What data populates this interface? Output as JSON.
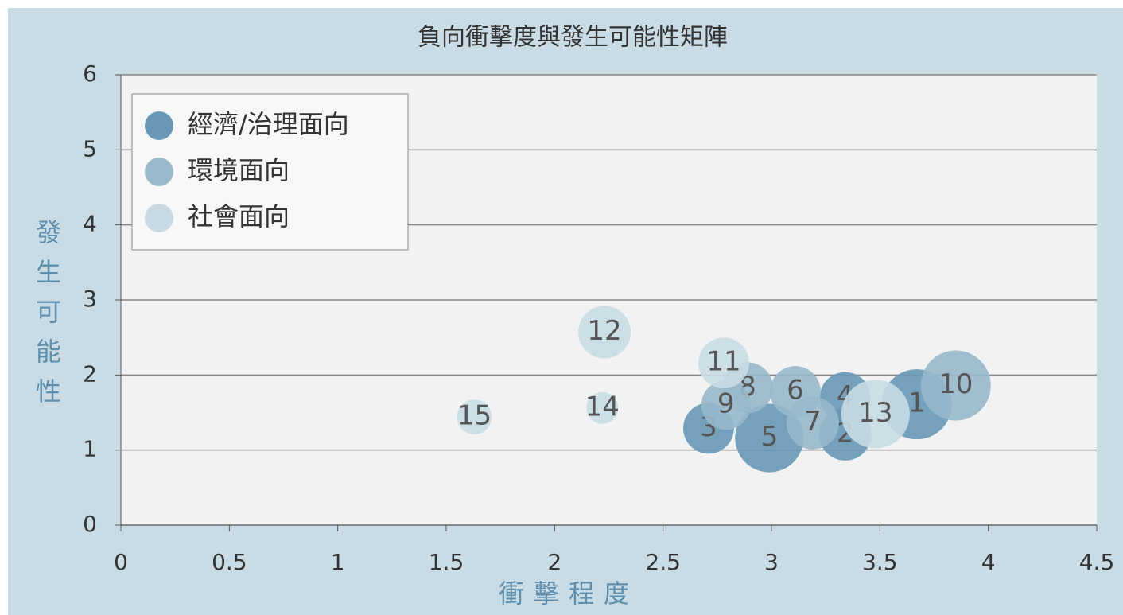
{
  "chart_data": {
    "type": "bubble",
    "title": "負向衝擊度與發生可能性矩陣",
    "x_label": "衝擊程度",
    "y_label": "發生可能性",
    "xlim": [
      0,
      4.5
    ],
    "xticks": [
      0,
      0.5,
      1,
      1.5,
      2,
      2.5,
      3,
      3.5,
      4,
      4.5
    ],
    "ylim": [
      0,
      6
    ],
    "yticks": [
      0,
      1,
      2,
      3,
      4,
      5,
      6
    ],
    "grid": true,
    "legend": "upper left",
    "series": [
      {
        "name": "經濟/治理面向",
        "color": "#6898b6",
        "labels": [
          "1",
          "2",
          "3",
          "4",
          "5"
        ],
        "x": [
          3.67,
          3.34,
          2.71,
          3.34,
          2.99
        ],
        "values": [
          1.61,
          1.21,
          1.29,
          1.7,
          1.16
        ],
        "sizes": [
          19.4,
          10.9,
          10.2,
          10.2,
          18.5
        ]
      },
      {
        "name": "環境面向",
        "color": "#98b8cb",
        "labels": [
          "6",
          "7",
          "8",
          "9",
          "10"
        ],
        "x": [
          3.11,
          3.19,
          2.89,
          2.79,
          3.85
        ],
        "values": [
          1.78,
          1.36,
          1.83,
          1.6,
          1.86
        ],
        "sizes": [
          10.2,
          10.9,
          10.2,
          9.6,
          19.4
        ]
      },
      {
        "name": "社會面向",
        "color": "#c8dbe4",
        "labels": [
          "11",
          "12",
          "13",
          "14",
          "15"
        ],
        "x": [
          2.78,
          2.23,
          3.48,
          2.22,
          1.63
        ],
        "values": [
          2.16,
          2.57,
          1.48,
          1.56,
          1.44
        ],
        "sizes": [
          10.2,
          10.9,
          18.5,
          4,
          4.8
        ]
      }
    ]
  }
}
